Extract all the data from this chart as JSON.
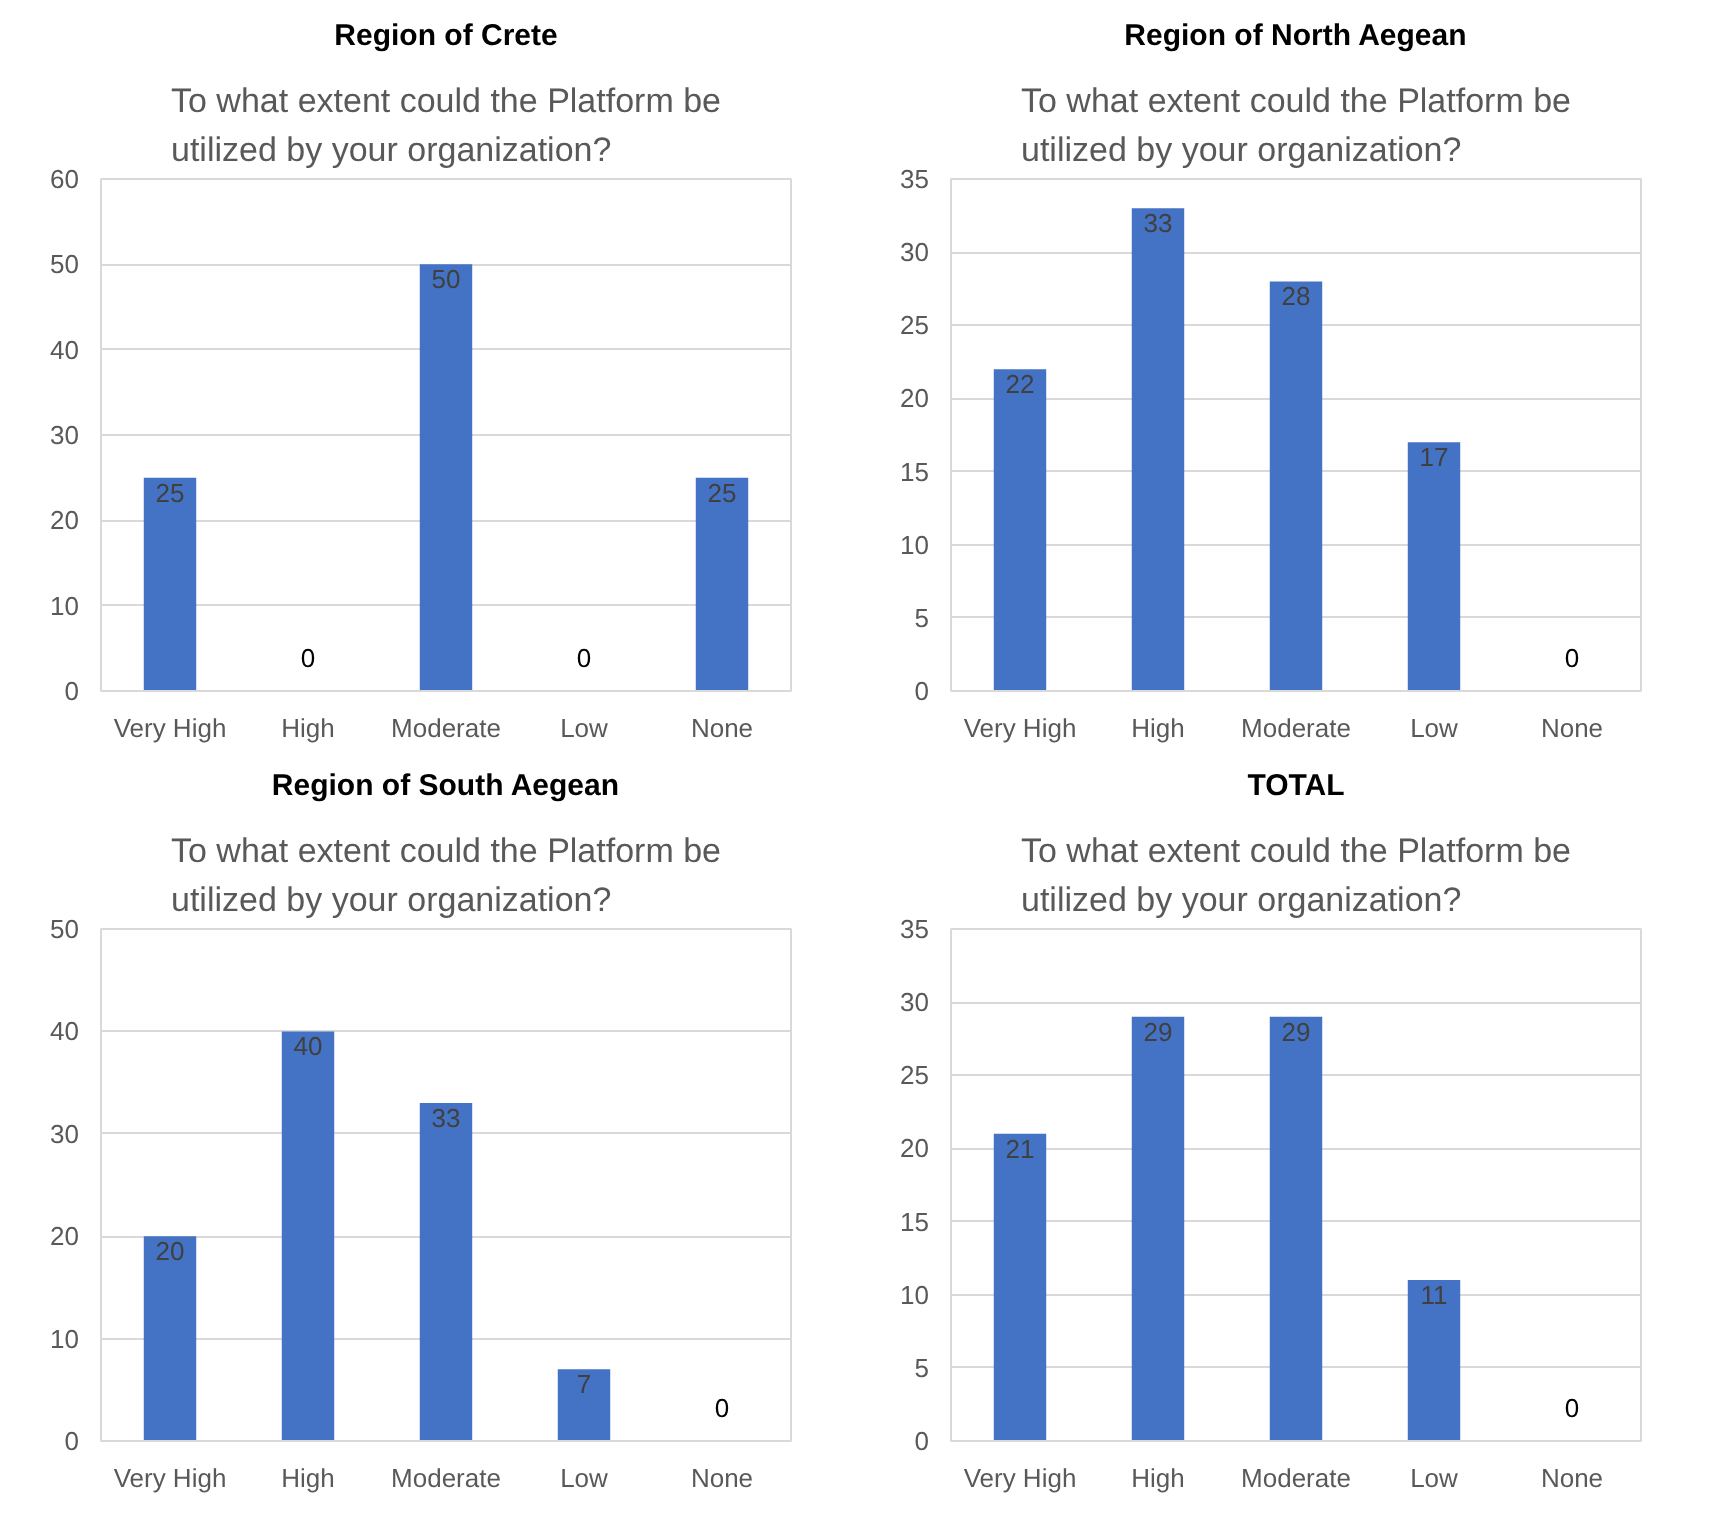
{
  "chart_data": [
    {
      "type": "bar",
      "title": "Region of Crete",
      "subtitle": "To what extent could the Platform be utilized by your organization?",
      "categories": [
        "Very High",
        "High",
        "Moderate",
        "Low",
        "None"
      ],
      "values": [
        25,
        0,
        50,
        0,
        25
      ],
      "color": "#4472c4",
      "ylim": [
        0,
        60
      ],
      "yticks": [
        0,
        10,
        20,
        30,
        40,
        50,
        60
      ],
      "grid": "y",
      "data_labels": true
    },
    {
      "type": "bar",
      "title": "Region of North Aegean",
      "subtitle": "To what extent could the Platform be utilized by your organization?",
      "categories": [
        "Very High",
        "High",
        "Moderate",
        "Low",
        "None"
      ],
      "values": [
        22,
        33,
        28,
        17,
        0
      ],
      "color": "#4472c4",
      "ylim": [
        0,
        35
      ],
      "yticks": [
        0,
        5,
        10,
        15,
        20,
        25,
        30,
        35
      ],
      "grid": "y",
      "data_labels": true
    },
    {
      "type": "bar",
      "title": "Region of South Aegean",
      "subtitle": "To what extent could the Platform be utilized by your organization?",
      "categories": [
        "Very High",
        "High",
        "Moderate",
        "Low",
        "None"
      ],
      "values": [
        20,
        40,
        33,
        7,
        0
      ],
      "color": "#4472c4",
      "ylim": [
        0,
        50
      ],
      "yticks": [
        0,
        10,
        20,
        30,
        40,
        50
      ],
      "grid": "y",
      "data_labels": true
    },
    {
      "type": "bar",
      "title": "TOTAL",
      "subtitle": "To what extent could the Platform be utilized by your organization?",
      "categories": [
        "Very High",
        "High",
        "Moderate",
        "Low",
        "None"
      ],
      "values": [
        21,
        29,
        29,
        11,
        0
      ],
      "color": "#4472c4",
      "ylim": [
        0,
        35
      ],
      "yticks": [
        0,
        5,
        10,
        15,
        20,
        25,
        30,
        35
      ],
      "grid": "y",
      "data_labels": true
    }
  ]
}
